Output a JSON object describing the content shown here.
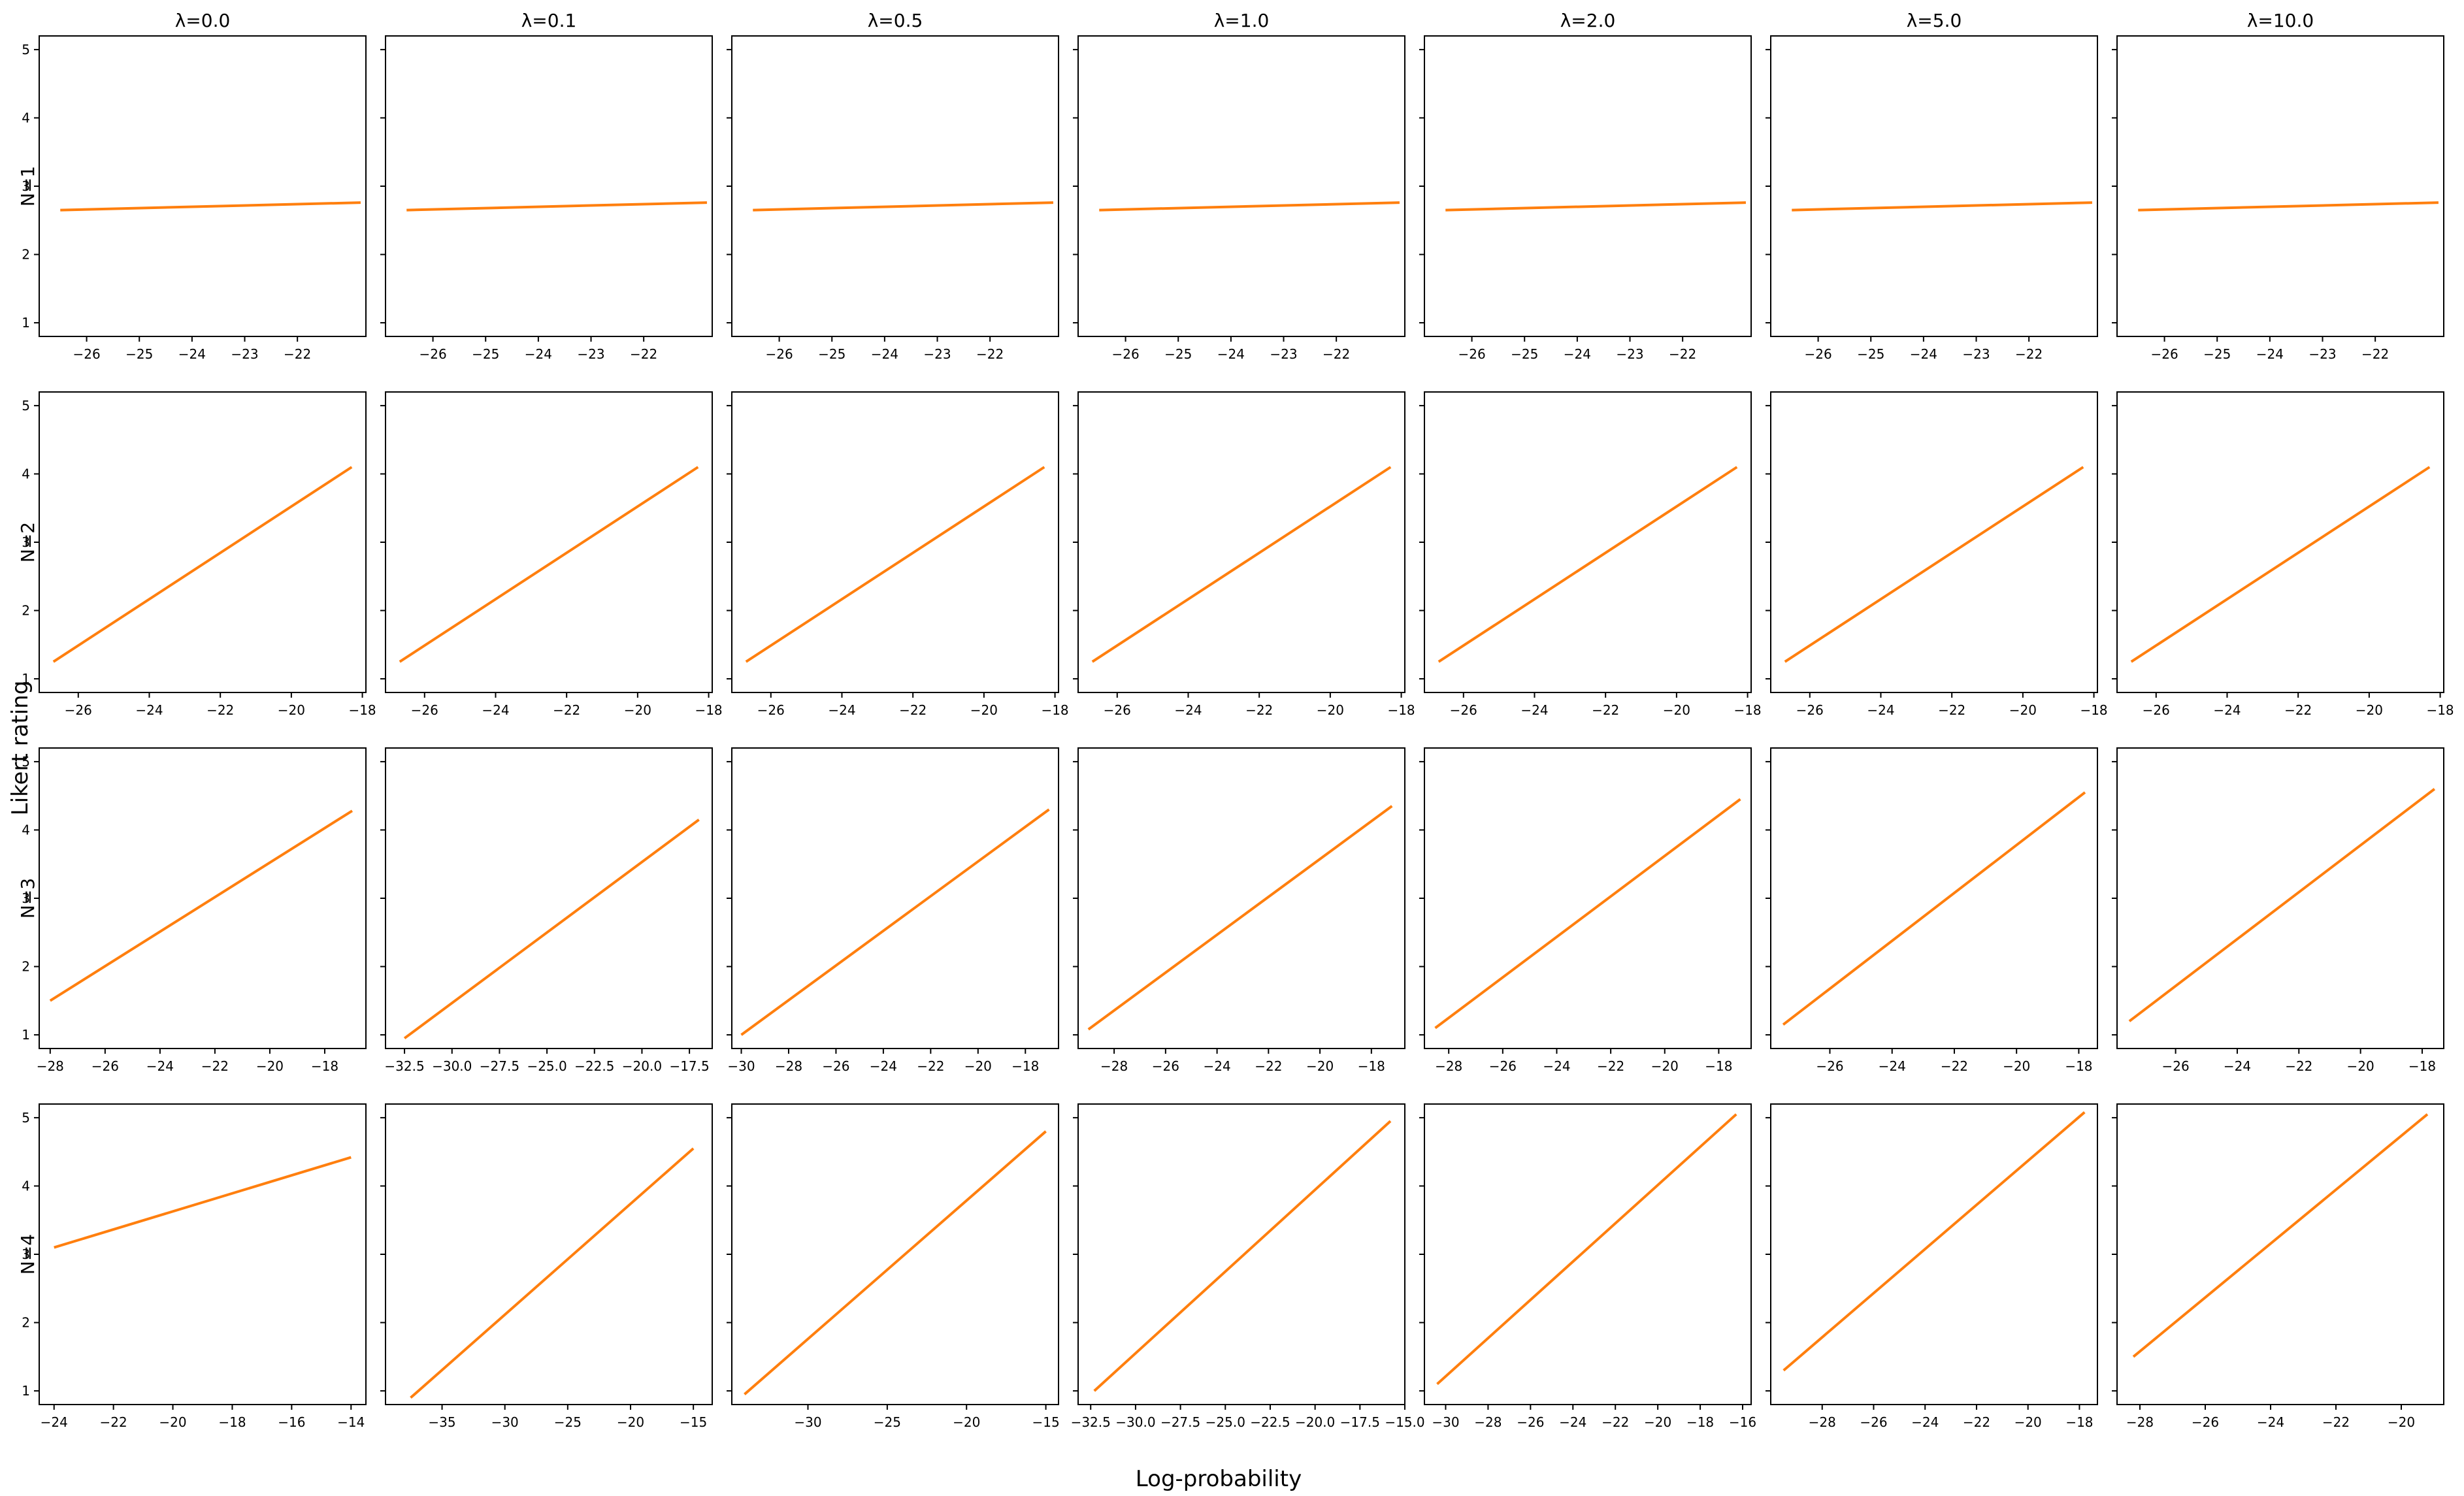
{
  "figure": {
    "xlabel": "Log-probability",
    "ylabel": "Likert rating",
    "colors": {
      "points": "#1f77b4",
      "fit_line": "#ff7f0e",
      "axes": "#000000"
    }
  },
  "chart_data": {
    "type": "scatter",
    "columns": [
      "λ=0.0",
      "λ=0.1",
      "λ=0.5",
      "λ=1.0",
      "λ=2.0",
      "λ=5.0",
      "λ=10.0"
    ],
    "rows": [
      "N=1",
      "N=2",
      "N=3",
      "N=4"
    ],
    "yticks": [
      1,
      2,
      3,
      4,
      5
    ],
    "ylim": [
      0.8,
      5.2
    ],
    "panels": [
      [
        {
          "xlim": [
            -26.9,
            -20.7
          ],
          "xticks": [
            -26,
            -25,
            -24,
            -23,
            -22
          ],
          "tick_labels": [
            "−26",
            "−25",
            "−24",
            "−23",
            "−22"
          ],
          "fit": [
            [
              -26.5,
              2.65
            ],
            [
              -20.8,
              2.76
            ]
          ]
        },
        {
          "xlim": [
            -26.9,
            -20.7
          ],
          "xticks": [
            -26,
            -25,
            -24,
            -23,
            -22
          ],
          "tick_labels": [
            "−26",
            "−25",
            "−24",
            "−23",
            "−22"
          ],
          "fit": [
            [
              -26.5,
              2.65
            ],
            [
              -20.8,
              2.76
            ]
          ]
        },
        {
          "xlim": [
            -26.9,
            -20.7
          ],
          "xticks": [
            -26,
            -25,
            -24,
            -23,
            -22
          ],
          "tick_labels": [
            "−26",
            "−25",
            "−24",
            "−23",
            "−22"
          ],
          "fit": [
            [
              -26.5,
              2.65
            ],
            [
              -20.8,
              2.76
            ]
          ]
        },
        {
          "xlim": [
            -26.9,
            -20.7
          ],
          "xticks": [
            -26,
            -25,
            -24,
            -23,
            -22
          ],
          "tick_labels": [
            "−26",
            "−25",
            "−24",
            "−23",
            "−22"
          ],
          "fit": [
            [
              -26.5,
              2.65
            ],
            [
              -20.8,
              2.76
            ]
          ]
        },
        {
          "xlim": [
            -26.9,
            -20.7
          ],
          "xticks": [
            -26,
            -25,
            -24,
            -23,
            -22
          ],
          "tick_labels": [
            "−26",
            "−25",
            "−24",
            "−23",
            "−22"
          ],
          "fit": [
            [
              -26.5,
              2.65
            ],
            [
              -20.8,
              2.76
            ]
          ]
        },
        {
          "xlim": [
            -26.9,
            -20.7
          ],
          "xticks": [
            -26,
            -25,
            -24,
            -23,
            -22
          ],
          "tick_labels": [
            "−26",
            "−25",
            "−24",
            "−23",
            "−22"
          ],
          "fit": [
            [
              -26.5,
              2.65
            ],
            [
              -20.8,
              2.76
            ]
          ]
        },
        {
          "xlim": [
            -26.9,
            -20.7
          ],
          "xticks": [
            -26,
            -25,
            -24,
            -23,
            -22
          ],
          "tick_labels": [
            "−26",
            "−25",
            "−24",
            "−23",
            "−22"
          ],
          "fit": [
            [
              -26.5,
              2.65
            ],
            [
              -20.8,
              2.76
            ]
          ]
        }
      ],
      [
        {
          "xlim": [
            -27.1,
            -17.9
          ],
          "xticks": [
            -26,
            -24,
            -22,
            -20,
            -18
          ],
          "tick_labels": [
            "−26",
            "−24",
            "−22",
            "−20",
            "−18"
          ],
          "fit": [
            [
              -26.7,
              1.25
            ],
            [
              -18.3,
              4.1
            ]
          ]
        },
        {
          "xlim": [
            -27.1,
            -17.9
          ],
          "xticks": [
            -26,
            -24,
            -22,
            -20,
            -18
          ],
          "tick_labels": [
            "−26",
            "−24",
            "−22",
            "−20",
            "−18"
          ],
          "fit": [
            [
              -26.7,
              1.25
            ],
            [
              -18.3,
              4.1
            ]
          ]
        },
        {
          "xlim": [
            -27.1,
            -17.9
          ],
          "xticks": [
            -26,
            -24,
            -22,
            -20,
            -18
          ],
          "tick_labels": [
            "−26",
            "−24",
            "−22",
            "−20",
            "−18"
          ],
          "fit": [
            [
              -26.7,
              1.25
            ],
            [
              -18.3,
              4.1
            ]
          ]
        },
        {
          "xlim": [
            -27.1,
            -17.9
          ],
          "xticks": [
            -26,
            -24,
            -22,
            -20,
            -18
          ],
          "tick_labels": [
            "−26",
            "−24",
            "−22",
            "−20",
            "−18"
          ],
          "fit": [
            [
              -26.7,
              1.25
            ],
            [
              -18.3,
              4.1
            ]
          ]
        },
        {
          "xlim": [
            -27.1,
            -17.9
          ],
          "xticks": [
            -26,
            -24,
            -22,
            -20,
            -18
          ],
          "tick_labels": [
            "−26",
            "−24",
            "−22",
            "−20",
            "−18"
          ],
          "fit": [
            [
              -26.7,
              1.25
            ],
            [
              -18.3,
              4.1
            ]
          ]
        },
        {
          "xlim": [
            -27.1,
            -17.9
          ],
          "xticks": [
            -26,
            -24,
            -22,
            -20,
            -18
          ],
          "tick_labels": [
            "−26",
            "−24",
            "−22",
            "−20",
            "−18"
          ],
          "fit": [
            [
              -26.7,
              1.25
            ],
            [
              -18.3,
              4.1
            ]
          ]
        },
        {
          "xlim": [
            -27.1,
            -17.9
          ],
          "xticks": [
            -26,
            -24,
            -22,
            -20,
            -18
          ],
          "tick_labels": [
            "−26",
            "−24",
            "−22",
            "−20",
            "−18"
          ],
          "fit": [
            [
              -26.7,
              1.25
            ],
            [
              -18.3,
              4.1
            ]
          ]
        }
      ],
      [
        {
          "xlim": [
            -28.4,
            -16.5
          ],
          "xticks": [
            -28,
            -26,
            -24,
            -22,
            -20,
            -18
          ],
          "tick_labels": [
            "−28",
            "−26",
            "−24",
            "−22",
            "−20",
            "−18"
          ],
          "fit": [
            [
              -28,
              1.5
            ],
            [
              -17,
              4.28
            ]
          ]
        },
        {
          "xlim": [
            -33.5,
            -16.3
          ],
          "xticks": [
            -32.5,
            -30,
            -27.5,
            -25,
            -22.5,
            -20,
            -17.5
          ],
          "tick_labels": [
            "−32.5",
            "−30.0",
            "−27.5",
            "−25.0",
            "−22.5",
            "−20.0",
            "−17.5"
          ],
          "fit": [
            [
              -32.5,
              0.95
            ],
            [
              -17,
              4.15
            ]
          ]
        },
        {
          "xlim": [
            -30.4,
            -16.6
          ],
          "xticks": [
            -30,
            -28,
            -26,
            -24,
            -22,
            -20,
            -18
          ],
          "tick_labels": [
            "−30",
            "−28",
            "−26",
            "−24",
            "−22",
            "−20",
            "−18"
          ],
          "fit": [
            [
              -30,
              1.0
            ],
            [
              -17,
              4.3
            ]
          ]
        },
        {
          "xlim": [
            -29.4,
            -16.7
          ],
          "xticks": [
            -28,
            -26,
            -24,
            -22,
            -20,
            -18
          ],
          "tick_labels": [
            "−28",
            "−26",
            "−24",
            "−22",
            "−20",
            "−18"
          ],
          "fit": [
            [
              -29,
              1.08
            ],
            [
              -17.2,
              4.35
            ]
          ]
        },
        {
          "xlim": [
            -28.9,
            -16.8
          ],
          "xticks": [
            -28,
            -26,
            -24,
            -22,
            -20,
            -18
          ],
          "tick_labels": [
            "−28",
            "−26",
            "−24",
            "−22",
            "−20",
            "−18"
          ],
          "fit": [
            [
              -28.5,
              1.1
            ],
            [
              -17.2,
              4.45
            ]
          ]
        },
        {
          "xlim": [
            -27.9,
            -17.4
          ],
          "xticks": [
            -26,
            -24,
            -22,
            -20,
            -18
          ],
          "tick_labels": [
            "−26",
            "−24",
            "−22",
            "−20",
            "−18"
          ],
          "fit": [
            [
              -27.5,
              1.15
            ],
            [
              -17.8,
              4.55
            ]
          ]
        },
        {
          "xlim": [
            -27.9,
            -17.3
          ],
          "xticks": [
            -26,
            -24,
            -22,
            -20,
            -18
          ],
          "tick_labels": [
            "−26",
            "−24",
            "−22",
            "−20",
            "−18"
          ],
          "fit": [
            [
              -27.5,
              1.2
            ],
            [
              -17.6,
              4.6
            ]
          ]
        }
      ],
      [
        {
          "xlim": [
            -24.5,
            -13.5
          ],
          "xticks": [
            -24,
            -22,
            -20,
            -18,
            -16,
            -14
          ],
          "tick_labels": [
            "−24",
            "−22",
            "−20",
            "−18",
            "−16",
            "−14"
          ],
          "fit": [
            [
              -24,
              3.1
            ],
            [
              -14,
              4.42
            ]
          ]
        },
        {
          "xlim": [
            -39.5,
            -13.5
          ],
          "xticks": [
            -35,
            -30,
            -25,
            -20,
            -15
          ],
          "tick_labels": [
            "−35",
            "−30",
            "−25",
            "−20",
            "−15"
          ],
          "fit": [
            [
              -37.5,
              0.9
            ],
            [
              -15,
              4.55
            ]
          ]
        },
        {
          "xlim": [
            -34.8,
            -14.2
          ],
          "xticks": [
            -30,
            -25,
            -20,
            -15
          ],
          "tick_labels": [
            "−30",
            "−25",
            "−20",
            "−15"
          ],
          "fit": [
            [
              -34,
              0.95
            ],
            [
              -15,
              4.8
            ]
          ]
        },
        {
          "xlim": [
            -33.2,
            -15.0
          ],
          "xticks": [
            -32.5,
            -30,
            -27.5,
            -25,
            -22.5,
            -20,
            -17.5,
            -15
          ],
          "tick_labels": [
            "−32.5",
            "−30.0",
            "−27.5",
            "−25.0",
            "−22.5",
            "−20.0",
            "−17.5",
            "−15.0"
          ],
          "fit": [
            [
              -32.3,
              1.0
            ],
            [
              -15.8,
              4.95
            ]
          ]
        },
        {
          "xlim": [
            -31.0,
            -15.6
          ],
          "xticks": [
            -30,
            -28,
            -26,
            -24,
            -22,
            -20,
            -18,
            -16
          ],
          "tick_labels": [
            "−30",
            "−28",
            "−26",
            "−24",
            "−22",
            "−20",
            "−18",
            "−16"
          ],
          "fit": [
            [
              -30.4,
              1.1
            ],
            [
              -16.3,
              5.05
            ]
          ]
        },
        {
          "xlim": [
            -30.0,
            -17.3
          ],
          "xticks": [
            -28,
            -26,
            -24,
            -22,
            -20,
            -18
          ],
          "tick_labels": [
            "−28",
            "−26",
            "−24",
            "−22",
            "−20",
            "−18"
          ],
          "fit": [
            [
              -29.5,
              1.3
            ],
            [
              -17.8,
              5.08
            ]
          ]
        },
        {
          "xlim": [
            -28.7,
            -18.7
          ],
          "xticks": [
            -28,
            -26,
            -24,
            -22,
            -20
          ],
          "tick_labels": [
            "−28",
            "−26",
            "−24",
            "−22",
            "−20"
          ],
          "fit": [
            [
              -28.2,
              1.5
            ],
            [
              -19.2,
              5.05
            ]
          ]
        }
      ]
    ]
  }
}
